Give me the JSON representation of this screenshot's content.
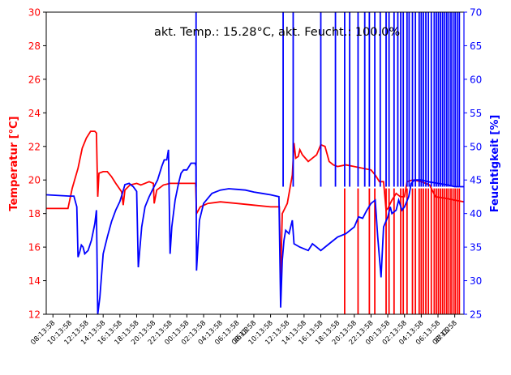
{
  "chart_data": {
    "type": "line",
    "annotation": "akt. Temp.: 15.28°C,  akt. Feucht.: 100.0%",
    "ylabel_left": "Temperatur [°C]",
    "ylabel_right": "Feuchtigkeit [%]",
    "ylim_left": [
      12,
      30
    ],
    "ylim_right": [
      25,
      70
    ],
    "yticks_left": [
      "12",
      "14",
      "16",
      "18",
      "20",
      "22",
      "24",
      "26",
      "28",
      "30"
    ],
    "yticks_right": [
      "25",
      "30",
      "35",
      "40",
      "45",
      "50",
      "55",
      "60",
      "65",
      "70"
    ],
    "xticks": [
      "08:13:58",
      "10:13:58",
      "12:13:58",
      "14:13:58",
      "16:13:58",
      "18:13:58",
      "20:13:58",
      "22:13:58",
      "00:13:58",
      "02:13:58",
      "04:13:58",
      "06:13:58",
      "26-02 08:13:58",
      "10:13:58",
      "12:13:58",
      "14:13:58",
      "16:13:58",
      "18:13:58",
      "20:13:58",
      "22:13:58",
      "00:13:58",
      "02:13:58",
      "04:13:58",
      "06:13:58",
      "27-02 08:13:58"
    ],
    "x_unit": "hours since first tick",
    "xlim": [
      -0.8,
      49.1
    ],
    "colors": {
      "temperature": "#ff0000",
      "humidity": "#0000ff"
    },
    "series": [
      {
        "name": "Temperatur",
        "axis": "left",
        "color": "#ff0000",
        "points": [
          [
            -0.8,
            18.3
          ],
          [
            1.8,
            18.3
          ],
          [
            2.3,
            19.5
          ],
          [
            3,
            20.7
          ],
          [
            3.5,
            21.9
          ],
          [
            4,
            22.5
          ],
          [
            4.5,
            22.9
          ],
          [
            5,
            22.9
          ],
          [
            5.2,
            22.8
          ],
          [
            5.35,
            19.0
          ],
          [
            5.5,
            20.4
          ],
          [
            6,
            20.5
          ],
          [
            6.5,
            20.5
          ],
          [
            7,
            20.2
          ],
          [
            7.5,
            19.8
          ],
          [
            8.2,
            19.3
          ],
          [
            8.4,
            18.5
          ],
          [
            8.6,
            19.4
          ],
          [
            9.2,
            19.7
          ],
          [
            10,
            19.8
          ],
          [
            10.5,
            19.7
          ],
          [
            11.5,
            19.9
          ],
          [
            12,
            19.8
          ],
          [
            12.1,
            18.6
          ],
          [
            12.4,
            19.4
          ],
          [
            13.2,
            19.7
          ],
          [
            14,
            19.8
          ],
          [
            15,
            19.8
          ],
          [
            17.05,
            19.8
          ],
          [
            17.15,
            18.0
          ],
          [
            17.6,
            18.4
          ],
          [
            18.5,
            18.6
          ],
          [
            20,
            18.7
          ],
          [
            22,
            18.6
          ],
          [
            24,
            18.5
          ],
          [
            26,
            18.4
          ],
          [
            27.05,
            18.4
          ],
          [
            27.2,
            14.1
          ],
          [
            27.4,
            18.0
          ],
          [
            28,
            18.6
          ],
          [
            28.6,
            20.3
          ],
          [
            28.8,
            22.2
          ],
          [
            29,
            21.3
          ],
          [
            29.3,
            21.4
          ],
          [
            29.5,
            21.8
          ],
          [
            29.8,
            21.5
          ],
          [
            30.5,
            21.1
          ],
          [
            31.5,
            21.5
          ],
          [
            32,
            22.1
          ],
          [
            32.5,
            22.0
          ],
          [
            33,
            21.1
          ],
          [
            33.5,
            20.9
          ],
          [
            34,
            20.8
          ],
          [
            35,
            20.9
          ],
          [
            36,
            20.8
          ],
          [
            37,
            20.7
          ],
          [
            38,
            20.6
          ],
          [
            38.5,
            20.3
          ],
          [
            39,
            19.9
          ],
          [
            39.5,
            19.9
          ],
          [
            39.8,
            18.2
          ],
          [
            40,
            18.3
          ],
          [
            40.5,
            18.8
          ],
          [
            41,
            19.2
          ],
          [
            41.5,
            19.0
          ],
          [
            42,
            19.0
          ],
          [
            42.3,
            19.9
          ],
          [
            43,
            20.0
          ],
          [
            44,
            19.9
          ],
          [
            45,
            19.7
          ],
          [
            45.7,
            19.0
          ],
          [
            47,
            18.9
          ],
          [
            48,
            18.8
          ],
          [
            49.1,
            18.7
          ]
        ]
      },
      {
        "name": "Feuchtigkeit",
        "axis": "right",
        "color": "#0000ff",
        "points": [
          [
            -0.8,
            42.8
          ],
          [
            2,
            42.6
          ],
          [
            2.5,
            42.6
          ],
          [
            2.85,
            41.0
          ],
          [
            3.0,
            33.5
          ],
          [
            3.2,
            34.3
          ],
          [
            3.4,
            35.3
          ],
          [
            3.6,
            35.0
          ],
          [
            3.8,
            34.0
          ],
          [
            4.2,
            34.5
          ],
          [
            4.6,
            36.0
          ],
          [
            5.0,
            38.5
          ],
          [
            5.2,
            40.5
          ],
          [
            5.35,
            25.0
          ],
          [
            5.6,
            27.5
          ],
          [
            6,
            34.0
          ],
          [
            6.5,
            36.5
          ],
          [
            7,
            38.8
          ],
          [
            7.5,
            40.5
          ],
          [
            8,
            41.8
          ],
          [
            8.3,
            43.0
          ],
          [
            8.6,
            44.3
          ],
          [
            9.1,
            44.5
          ],
          [
            9.6,
            44.0
          ],
          [
            10,
            43.3
          ],
          [
            10.2,
            32.0
          ],
          [
            10.6,
            38.0
          ],
          [
            11,
            41.0
          ],
          [
            11.5,
            42.5
          ],
          [
            12,
            43.8
          ],
          [
            12.5,
            45.0
          ],
          [
            13,
            47.0
          ],
          [
            13.3,
            48.0
          ],
          [
            13.6,
            48.0
          ],
          [
            13.8,
            49.5
          ],
          [
            14.0,
            34.0
          ],
          [
            14.2,
            38.0
          ],
          [
            14.6,
            42.0
          ],
          [
            15,
            44.5
          ],
          [
            15.3,
            46.0
          ],
          [
            15.6,
            46.5
          ],
          [
            16,
            46.5
          ],
          [
            16.5,
            47.5
          ],
          [
            17,
            47.5
          ],
          [
            17.1,
            47.0
          ],
          [
            17.15,
            31.5
          ],
          [
            17.5,
            39.0
          ],
          [
            18,
            41.5
          ],
          [
            19,
            43.0
          ],
          [
            20,
            43.5
          ],
          [
            21,
            43.7
          ],
          [
            22,
            43.6
          ],
          [
            23,
            43.5
          ],
          [
            24,
            43.2
          ],
          [
            25,
            43.0
          ],
          [
            26,
            42.8
          ],
          [
            27,
            42.5
          ],
          [
            27.2,
            26.0
          ],
          [
            27.4,
            33.0
          ],
          [
            27.6,
            36.0
          ],
          [
            27.8,
            37.5
          ],
          [
            28.2,
            37.0
          ],
          [
            28.6,
            39.0
          ],
          [
            28.8,
            35.5
          ],
          [
            29.5,
            35.0
          ],
          [
            30.5,
            34.5
          ],
          [
            31,
            35.5
          ],
          [
            31.5,
            35.0
          ],
          [
            32,
            34.5
          ],
          [
            33,
            35.5
          ],
          [
            34,
            36.5
          ],
          [
            35,
            37.0
          ],
          [
            36,
            38.0
          ],
          [
            36.5,
            39.5
          ],
          [
            37,
            39.3
          ],
          [
            37.5,
            40.5
          ],
          [
            38,
            41.5
          ],
          [
            38.5,
            42.0
          ],
          [
            38.8,
            36.5
          ],
          [
            39.2,
            30.5
          ],
          [
            39.5,
            38.0
          ],
          [
            40,
            39.5
          ],
          [
            40.3,
            41.0
          ],
          [
            40.5,
            40.0
          ],
          [
            41,
            40.5
          ],
          [
            41.3,
            42.0
          ],
          [
            41.7,
            40.5
          ],
          [
            42,
            41.0
          ],
          [
            42.5,
            42.5
          ],
          [
            42.8,
            44.5
          ],
          [
            43.2,
            45.0
          ],
          [
            44,
            45.0
          ],
          [
            45,
            44.7
          ],
          [
            46,
            44.5
          ],
          [
            47,
            44.3
          ],
          [
            48,
            44.0
          ],
          [
            49.1,
            44.0
          ]
        ]
      }
    ],
    "spikes_up_humidity": [
      17.1,
      27.5,
      28.7,
      32.0,
      33.75,
      34.85,
      35.45,
      36.45,
      37.25,
      37.8,
      38.45,
      39.1,
      39.8,
      40.15,
      40.75,
      41.2,
      41.55,
      41.85,
      42.3,
      42.55,
      42.95,
      43.3,
      43.75,
      44.0,
      44.25,
      44.55,
      44.85,
      45.2,
      45.55,
      45.8,
      46.05,
      46.3,
      46.55,
      46.8,
      47.05,
      47.3,
      47.55,
      47.8,
      48.05,
      48.3,
      48.55
    ],
    "spikes_down_temperature": [
      34.85,
      36.45,
      37.8,
      38.45,
      39.8,
      40.15,
      40.75,
      41.55,
      41.85,
      42.3,
      42.95,
      43.3,
      43.75,
      44.0,
      44.25,
      44.55,
      44.85,
      45.2,
      45.55,
      45.8,
      46.05,
      46.3,
      46.55,
      46.8,
      47.05,
      47.3,
      47.55,
      47.8,
      48.05,
      48.3,
      48.55
    ],
    "grid": false
  }
}
